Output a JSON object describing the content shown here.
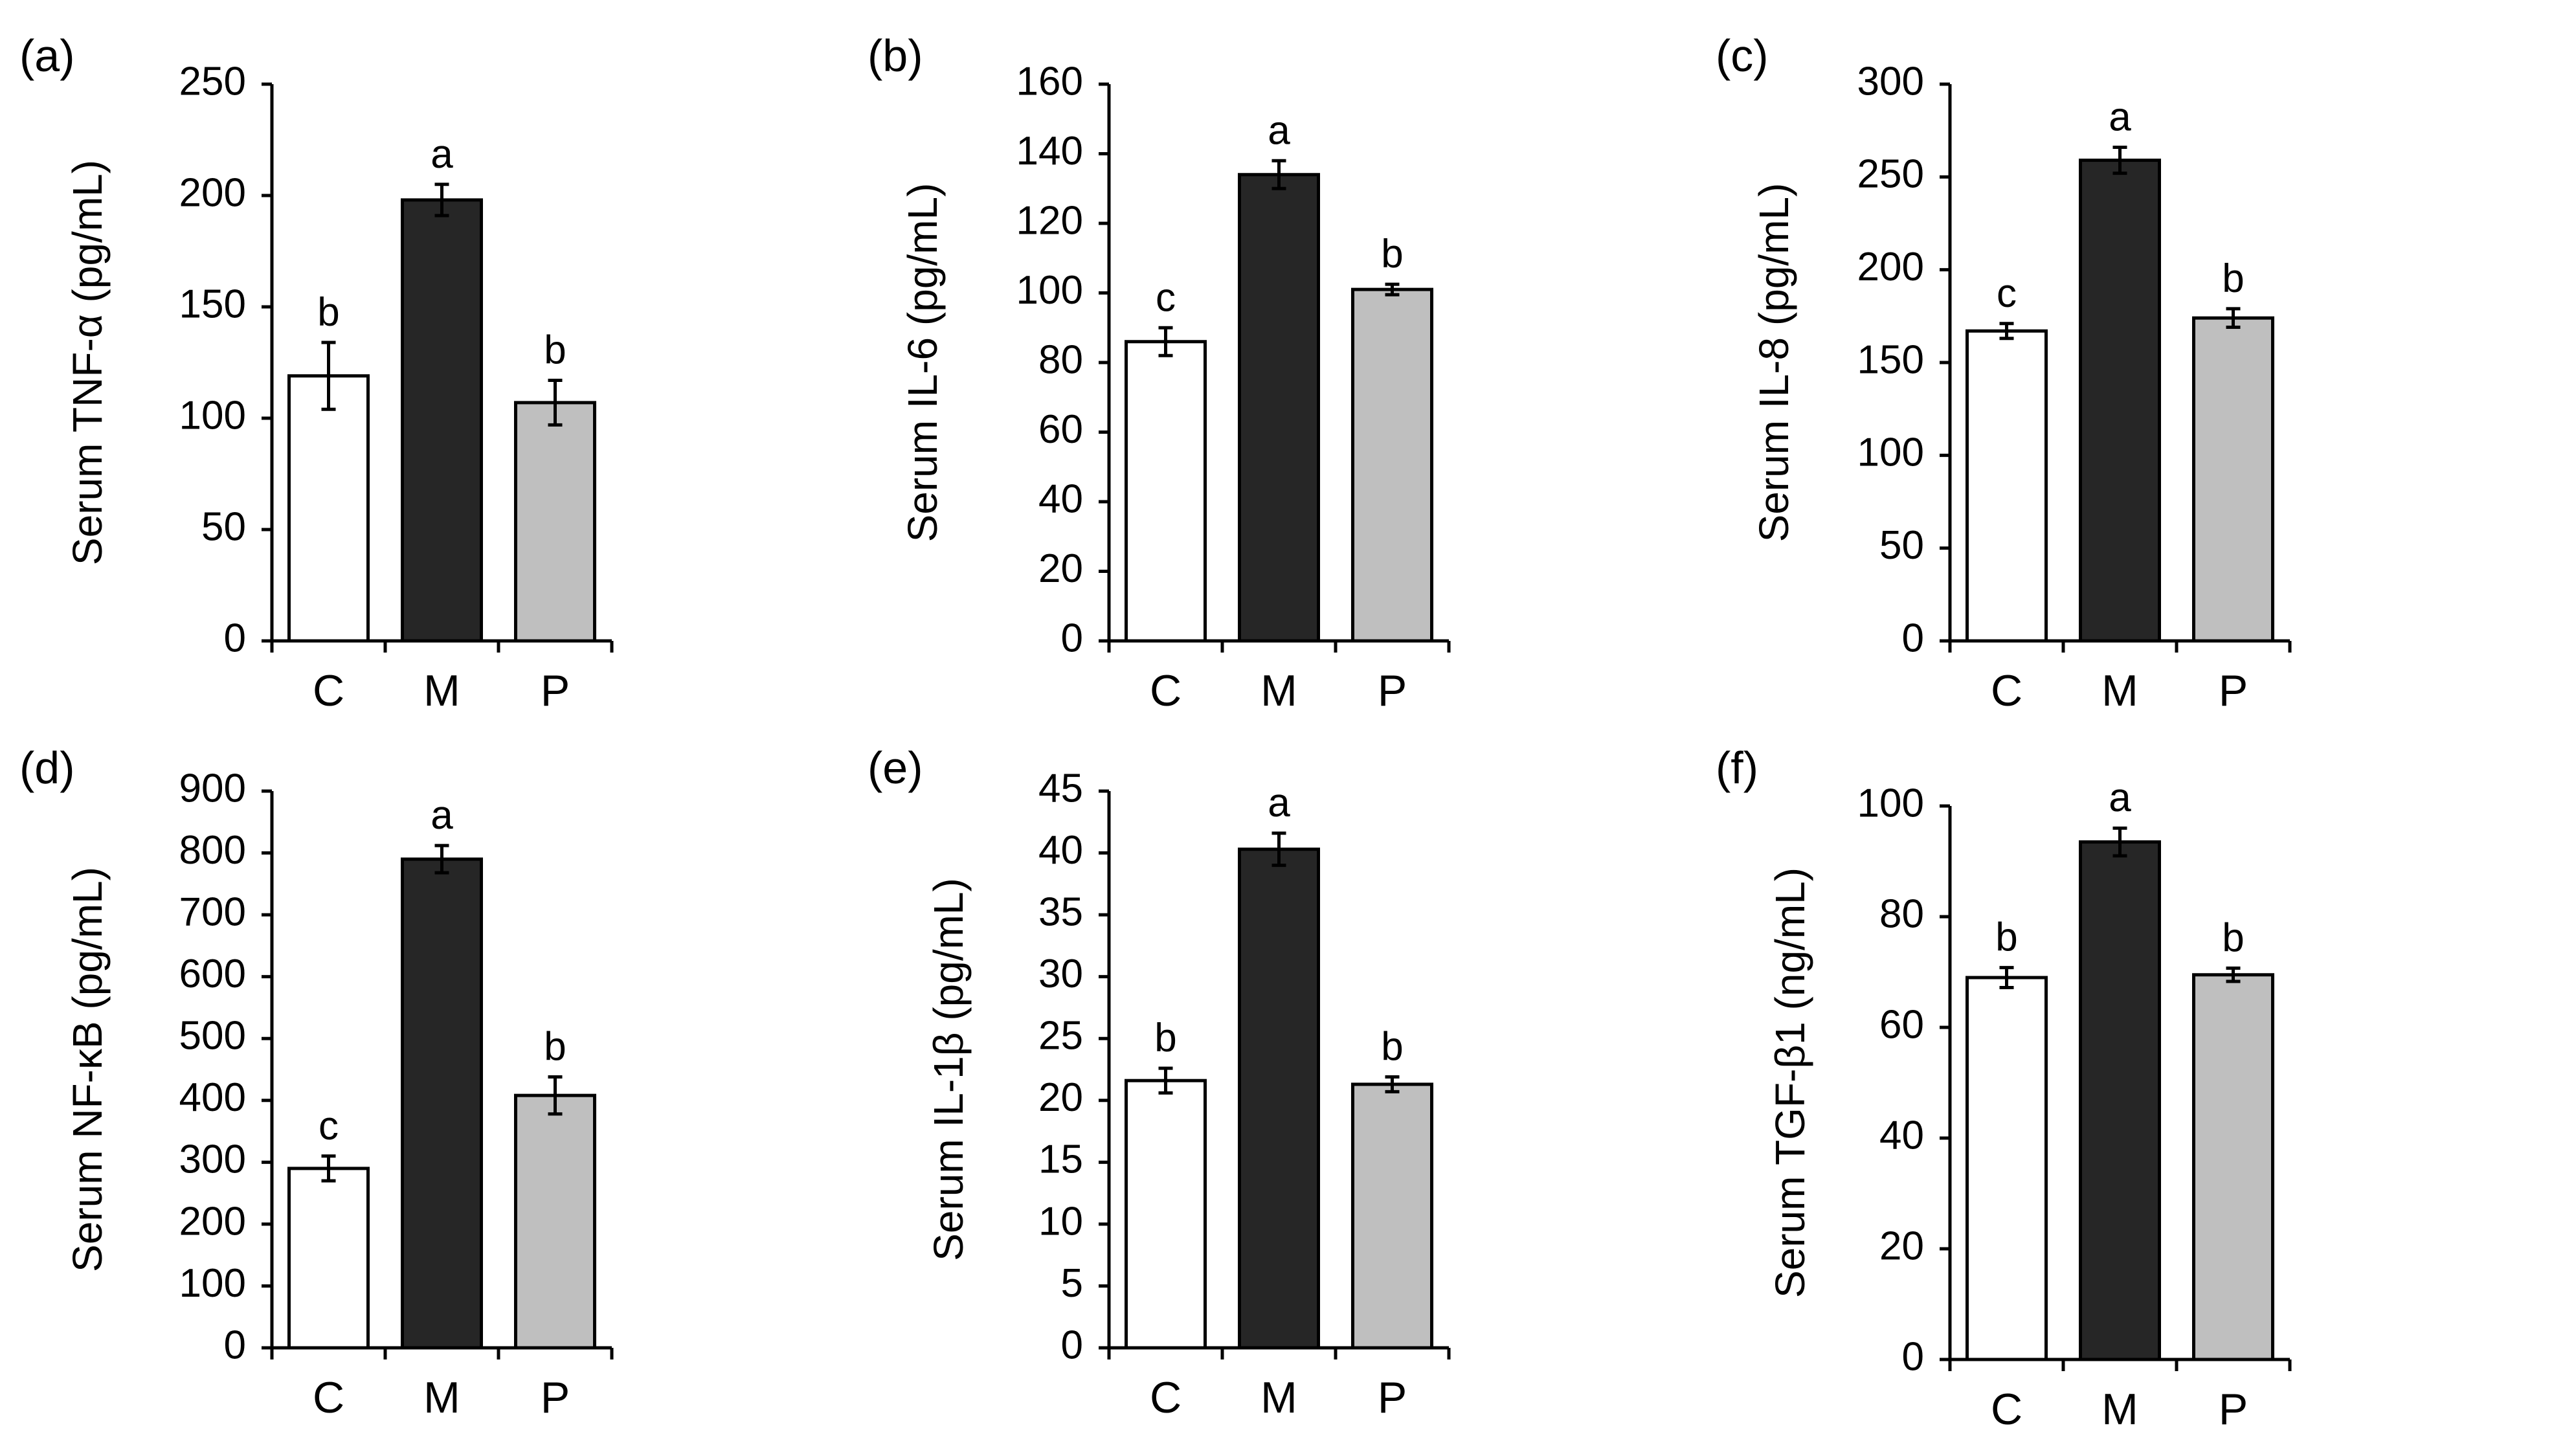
{
  "chart_data": [
    {
      "type": "bar",
      "panel_label": "(a)",
      "ylabel": "Serum TNF-α (pg/mL)",
      "categories": [
        "C",
        "M",
        "P"
      ],
      "values": [
        119,
        198,
        107
      ],
      "errors": [
        15,
        7,
        10
      ],
      "significance": [
        "b",
        "a",
        "b"
      ],
      "colors": [
        "#ffffff",
        "#262626",
        "#bfbfbf"
      ],
      "ylim": [
        0,
        250
      ],
      "yticks": [
        0,
        50,
        100,
        150,
        200,
        250
      ]
    },
    {
      "type": "bar",
      "panel_label": "(b)",
      "ylabel": "Serum IL-6 (pg/mL)",
      "categories": [
        "C",
        "M",
        "P"
      ],
      "values": [
        86,
        134,
        101
      ],
      "errors": [
        4,
        4,
        1.5
      ],
      "significance": [
        "c",
        "a",
        "b"
      ],
      "colors": [
        "#ffffff",
        "#262626",
        "#bfbfbf"
      ],
      "ylim": [
        0,
        160
      ],
      "yticks": [
        0,
        20,
        40,
        60,
        80,
        100,
        120,
        140,
        160
      ]
    },
    {
      "type": "bar",
      "panel_label": "(c)",
      "ylabel": "Serum IL-8 (pg/mL)",
      "categories": [
        "C",
        "M",
        "P"
      ],
      "values": [
        167,
        259,
        174
      ],
      "errors": [
        4,
        7,
        5
      ],
      "significance": [
        "c",
        "a",
        "b"
      ],
      "colors": [
        "#ffffff",
        "#262626",
        "#bfbfbf"
      ],
      "ylim": [
        0,
        300
      ],
      "yticks": [
        0,
        50,
        100,
        150,
        200,
        250,
        300
      ]
    },
    {
      "type": "bar",
      "panel_label": "(d)",
      "ylabel": "Serum NF-κB (pg/mL)",
      "categories": [
        "C",
        "M",
        "P"
      ],
      "values": [
        290,
        790,
        408
      ],
      "errors": [
        20,
        22,
        30
      ],
      "significance": [
        "c",
        "a",
        "b"
      ],
      "colors": [
        "#ffffff",
        "#262626",
        "#bfbfbf"
      ],
      "ylim": [
        0,
        900
      ],
      "yticks": [
        0,
        100,
        200,
        300,
        400,
        500,
        600,
        700,
        800,
        900
      ]
    },
    {
      "type": "bar",
      "panel_label": "(e)",
      "ylabel": "Serum IL-1β (pg/mL)",
      "categories": [
        "C",
        "M",
        "P"
      ],
      "values": [
        21.6,
        40.3,
        21.3
      ],
      "errors": [
        1.0,
        1.3,
        0.6
      ],
      "significance": [
        "b",
        "a",
        "b"
      ],
      "colors": [
        "#ffffff",
        "#262626",
        "#bfbfbf"
      ],
      "ylim": [
        0,
        45
      ],
      "yticks": [
        0,
        5,
        10,
        15,
        20,
        25,
        30,
        35,
        40,
        45
      ]
    },
    {
      "type": "bar",
      "panel_label": "(f)",
      "ylabel": "Serum TGF-β1 (ng/mL)",
      "categories": [
        "C",
        "M",
        "P"
      ],
      "values": [
        69,
        93.5,
        69.5
      ],
      "errors": [
        1.8,
        2.5,
        1.2
      ],
      "significance": [
        "b",
        "a",
        "b"
      ],
      "colors": [
        "#ffffff",
        "#262626",
        "#bfbfbf"
      ],
      "ylim": [
        0,
        100
      ],
      "yticks": [
        0,
        20,
        40,
        60,
        80,
        100
      ]
    }
  ]
}
